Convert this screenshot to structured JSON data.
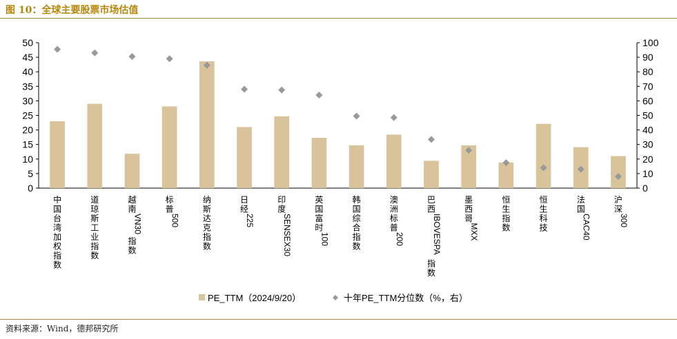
{
  "header": {
    "title": "图 10：全球主要股票市场估值"
  },
  "footer": {
    "source": "资料来源：Wind，德邦研究所"
  },
  "colors": {
    "bar": "#d9c39a",
    "marker": "#999999",
    "rule": "#b08a4a",
    "title": "#b8860b"
  },
  "chart_data": {
    "type": "bar",
    "categories": [
      "中国台湾加权指数",
      "道琼斯工业指数",
      "越南VN30指数",
      "标普500",
      "纳斯达克指数",
      "日经225",
      "印度SENSEX30",
      "英国富时100",
      "韩国综合指数",
      "澳洲标普200",
      "巴西IBOVESPA指数",
      "墨西哥MXX",
      "恒生指数",
      "恒生科技",
      "法国CAC40",
      "沪深300"
    ],
    "series": [
      {
        "name": "PE_TTM（2024/9/20）",
        "type": "bar",
        "axis": "left",
        "values": [
          23.0,
          29.0,
          11.8,
          28.1,
          43.6,
          21.0,
          24.7,
          17.3,
          14.7,
          18.4,
          9.4,
          14.7,
          8.8,
          22.1,
          14.1,
          11.0
        ]
      },
      {
        "name": "十年PE_TTM分位数（%，右）",
        "type": "scatter",
        "axis": "right",
        "values": [
          95.5,
          93.0,
          90.5,
          89.0,
          84.5,
          68.0,
          67.5,
          64.0,
          49.5,
          48.5,
          33.5,
          26.0,
          17.5,
          14.0,
          13.0,
          8.0
        ]
      }
    ],
    "left_axis": {
      "min": 0,
      "max": 50,
      "step": 5,
      "ticks": [
        "0",
        "5",
        "10",
        "15",
        "20",
        "25",
        "30",
        "35",
        "40",
        "45",
        "50"
      ]
    },
    "right_axis": {
      "min": 0,
      "max": 100,
      "step": 10,
      "ticks": [
        "0",
        "10",
        "20",
        "30",
        "40",
        "50",
        "60",
        "70",
        "80",
        "90",
        "100"
      ]
    },
    "grid": false,
    "legend_position": "bottom"
  }
}
